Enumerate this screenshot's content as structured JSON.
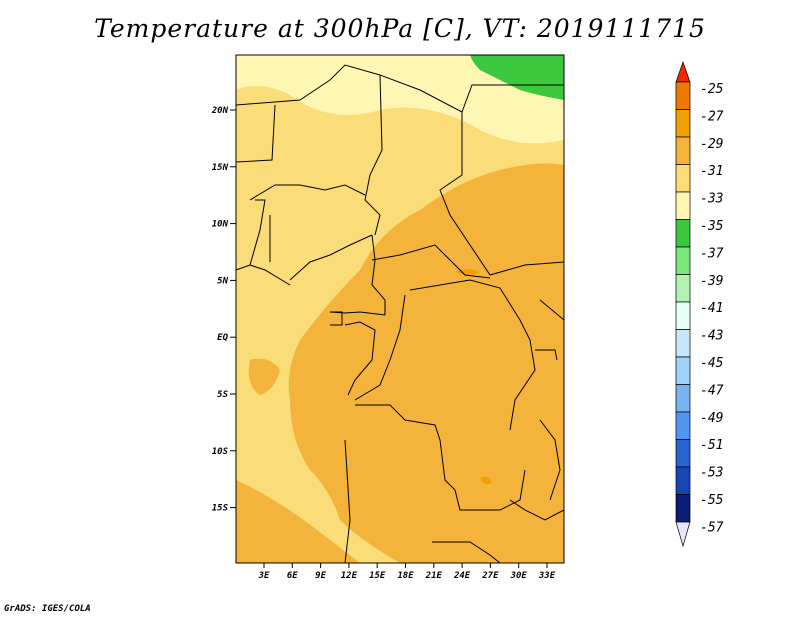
{
  "title": "Temperature at 300hPa [C], VT: 2019111715",
  "credit": "GrADS: IGES/COLA",
  "map": {
    "lat_ticks": [
      "20N",
      "15N",
      "10N",
      "5N",
      "EQ",
      "5S",
      "10S",
      "15S"
    ],
    "lon_ticks": [
      "3E",
      "6E",
      "9E",
      "12E",
      "15E",
      "18E",
      "21E",
      "24E",
      "27E",
      "30E",
      "33E"
    ]
  },
  "colorbar": {
    "labels": [
      "-25",
      "-27",
      "-29",
      "-31",
      "-33",
      "-35",
      "-37",
      "-39",
      "-41",
      "-43",
      "-45",
      "-47",
      "-49",
      "-51",
      "-53",
      "-55",
      "-57"
    ],
    "colors": [
      "#f04a00",
      "#f07800",
      "#f0a000",
      "#f4b43c",
      "#fadc78",
      "#fff6b4",
      "#3cc83c",
      "#78e678",
      "#b4f0b4",
      "#e6fff6",
      "#c8e6fa",
      "#a0d2fa",
      "#78b4f0",
      "#5096f0",
      "#2864d2",
      "#1446b4",
      "#0a1e78"
    ],
    "top_arrow_color": "#f02800",
    "bottom_arrow_color": "#e6e6fa"
  }
}
